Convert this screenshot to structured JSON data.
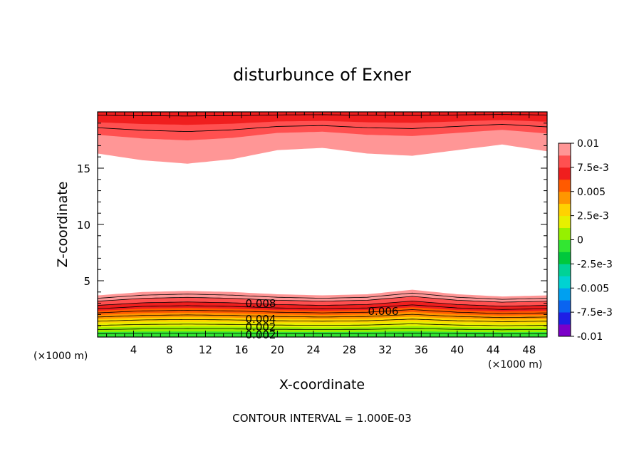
{
  "chart_data": {
    "type": "heatmap",
    "title": "disturbunce of Exner",
    "xlabel": "X-coordinate",
    "ylabel": "Z-coordinate",
    "x_unit_left": "(×1000 m)",
    "x_unit_right": "(×1000 m)",
    "xlim": [
      0,
      50
    ],
    "ylim": [
      0,
      20
    ],
    "x_ticks": [
      4,
      8,
      12,
      16,
      20,
      24,
      28,
      32,
      36,
      40,
      44,
      48
    ],
    "y_ticks": [
      5,
      10,
      15
    ],
    "colorbar": {
      "tick_labels": [
        "0.01",
        "7.5e-3",
        "0.005",
        "2.5e-3",
        "0",
        "-2.5e-3",
        "-0.005",
        "-7.5e-3",
        "-0.01"
      ],
      "colors": [
        "#7b00c8",
        "#1e1ee6",
        "#0a64f0",
        "#00a0f0",
        "#00d2d2",
        "#00d296",
        "#00c83c",
        "#32e632",
        "#96f000",
        "#e6f000",
        "#ffd200",
        "#ff9600",
        "#ff5a00",
        "#f01e1e",
        "#ff5050",
        "#ff9696"
      ]
    },
    "contour_labels": [
      "0.008",
      "0.006",
      "0.004",
      "0.002",
      "0.002"
    ],
    "contour_interval": "CONTOUR INTERVAL = 1.000E-03",
    "top_band": {
      "x": [
        0,
        5,
        10,
        15,
        20,
        25,
        30,
        35,
        40,
        45,
        50
      ],
      "lower_edge_z": [
        16.3,
        15.7,
        15.4,
        15.8,
        16.6,
        16.8,
        16.3,
        16.1,
        16.6,
        17.1,
        16.5
      ]
    },
    "bottom_band": {
      "x": [
        0,
        5,
        10,
        15,
        20,
        25,
        30,
        35,
        40,
        45,
        50
      ],
      "upper_edge_z": [
        3.7,
        4.0,
        4.1,
        4.0,
        3.8,
        3.7,
        3.8,
        4.2,
        3.8,
        3.6,
        3.7
      ]
    }
  }
}
